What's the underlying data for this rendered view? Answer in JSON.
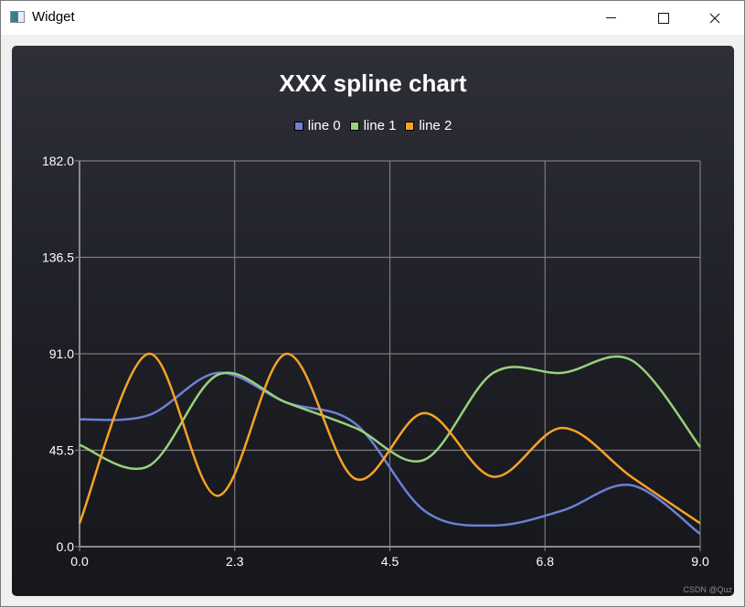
{
  "window": {
    "title": "Widget",
    "controls": {
      "minimize": "minimize",
      "maximize": "maximize",
      "close": "close"
    }
  },
  "colors": {
    "line0": "#6b80d6",
    "line1": "#98d17a",
    "line2": "#f8a325",
    "grid": "#7c7c7f",
    "axis": "#8a8a8d"
  },
  "watermark": "CSDN @Quz",
  "chart_data": {
    "type": "line",
    "subtype": "spline",
    "title": "XXX spline chart",
    "xlabel": "",
    "ylabel": "",
    "xlim": [
      0,
      9
    ],
    "ylim": [
      0,
      182
    ],
    "x_ticks": [
      "0.0",
      "2.3",
      "4.5",
      "6.8",
      "9.0"
    ],
    "y_ticks": [
      "0.0",
      "45.5",
      "91.0",
      "136.5",
      "182.0"
    ],
    "grid": true,
    "legend_position": "top",
    "x": [
      0,
      1,
      2,
      3,
      4,
      5,
      6,
      7,
      8,
      9
    ],
    "series": [
      {
        "name": "line 0",
        "color": "#6b80d6",
        "values": [
          60,
          62,
          82,
          68,
          58,
          17,
          10,
          17,
          29,
          6
        ]
      },
      {
        "name": "line 1",
        "color": "#98d17a",
        "values": [
          48,
          38,
          81,
          68,
          56,
          41,
          82,
          82,
          88,
          47
        ]
      },
      {
        "name": "line 2",
        "color": "#f8a325",
        "values": [
          11,
          91,
          24,
          91,
          32,
          63,
          33,
          56,
          33,
          11
        ]
      }
    ]
  }
}
